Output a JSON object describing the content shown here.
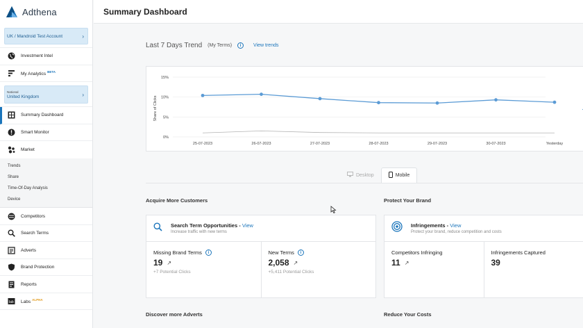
{
  "app": {
    "name": "Adthena"
  },
  "header": {
    "title": "Summary Dashboard"
  },
  "sidebar": {
    "account": "UK / Mandroid Test Account",
    "items_top": [
      {
        "label": "Investment Intel",
        "icon": "globe-icon"
      },
      {
        "label": "My Analytics",
        "icon": "analytics-icon",
        "badge": "BETA"
      }
    ],
    "region": {
      "label": "National",
      "value": "United Kingdom"
    },
    "items_mid": [
      {
        "label": "Summary Dashboard",
        "icon": "dashboard-icon"
      },
      {
        "label": "Smart Monitor",
        "icon": "alert-icon"
      },
      {
        "label": "Market",
        "icon": "market-icon"
      }
    ],
    "subitems": [
      "Trends",
      "Share",
      "Time-Of-Day Analysis",
      "Device"
    ],
    "items_bottom": [
      {
        "label": "Competitors",
        "icon": "competitors-icon"
      },
      {
        "label": "Search Terms",
        "icon": "search-icon"
      },
      {
        "label": "Adverts",
        "icon": "adverts-icon"
      },
      {
        "label": "Brand Protection",
        "icon": "shield-icon"
      },
      {
        "label": "Reports",
        "icon": "reports-icon"
      },
      {
        "label": "Labs",
        "icon": "labs-icon",
        "badge": "ALPHA"
      }
    ]
  },
  "trend": {
    "title": "Last 7 Days Trend",
    "subtitle": "(My Terms)",
    "view_link": "View trends"
  },
  "chart_data": {
    "type": "line",
    "ylabel": "Share of Clicks",
    "xlabel": "",
    "categories": [
      "25-07-2023",
      "26-07-2023",
      "27-07-2023",
      "28-07-2023",
      "29-07-2023",
      "30-07-2023",
      "Yesterday"
    ],
    "y_ticks": [
      "15%",
      "10%",
      "5%",
      "0%"
    ],
    "ylim": [
      0,
      15
    ],
    "series": [
      {
        "values": [
          10.4,
          10.7,
          9.6,
          8.6,
          8.5,
          9.3,
          8.7
        ],
        "color": "#5b9bd5"
      },
      {
        "values": [
          1.0,
          1.5,
          1.1,
          1.0,
          1.0,
          1.0,
          1.0
        ],
        "color": "#b3b3b3"
      }
    ],
    "grid": true
  },
  "device_toggle": {
    "desktop": "Desktop",
    "mobile": "Mobile",
    "selected": "Mobile"
  },
  "acquire": {
    "section_title": "Acquire More Customers",
    "card_title": "Search Term Opportunities",
    "card_link": "View",
    "card_desc": "Increase traffic with new terms",
    "metrics": [
      {
        "label": "Missing Brand Terms",
        "value": "19",
        "sub": "+7 Potential Clicks"
      },
      {
        "label": "New Terms",
        "value": "2,058",
        "sub": "+5,411 Potential Clicks"
      }
    ]
  },
  "protect": {
    "section_title": "Protect Your Brand",
    "card_title": "Infringements",
    "card_link": "View",
    "card_desc": "Protect your brand, reduce competition and costs",
    "metrics": [
      {
        "label": "Competitors Infringing",
        "value": "11"
      },
      {
        "label": "Infringements Captured",
        "value": "39"
      }
    ]
  },
  "bottom_sections": {
    "left": "Discover more Adverts",
    "right": "Reduce Your Costs"
  },
  "colors": {
    "accent": "#1b75bb",
    "line": "#5b9bd5",
    "baseline": "#b3b3b3"
  }
}
